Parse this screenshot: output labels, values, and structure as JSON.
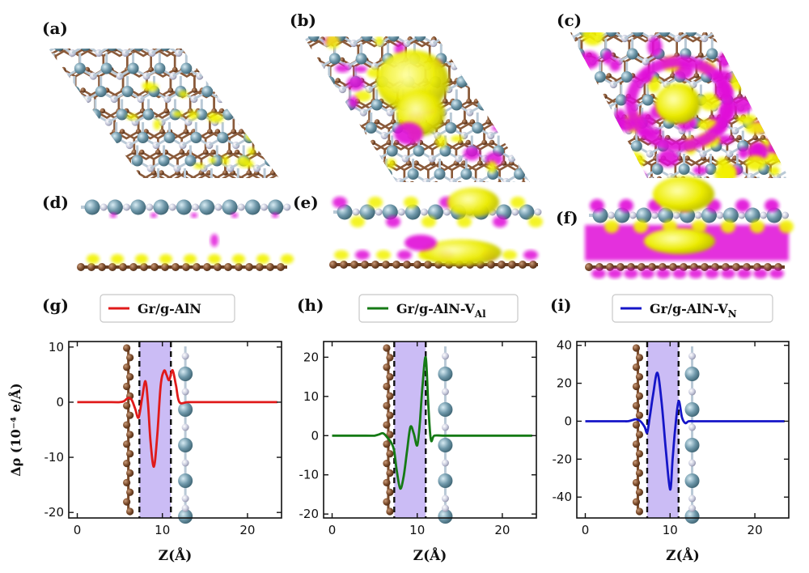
{
  "panels_top": [
    {
      "letter": "(a)"
    },
    {
      "letter": "(b)"
    },
    {
      "letter": "(c)"
    },
    {
      "letter": "(d)"
    },
    {
      "letter": "(e)"
    },
    {
      "letter": "(f)"
    }
  ],
  "colors": {
    "carbon": "#7a4a2a",
    "aluminum": "#6f98aa",
    "nitrogen": "#c7c9dc",
    "accumulation": "#f2f200",
    "depletion": "#e010d8",
    "shade": "#b9a6f2"
  },
  "chart_data": [
    {
      "type": "line",
      "letter": "(g)",
      "legend": "Gr/g-AlN",
      "legend_sub": "",
      "color": "#e01a1a",
      "xlabel": "Z(Å)",
      "ylabel": "Δρ (10⁻⁴ e/Å)",
      "xlim": [
        -1,
        24
      ],
      "ylim": [
        -21,
        11
      ],
      "xticks": [
        0,
        10,
        20
      ],
      "yticks": [
        10,
        0,
        -10,
        -20
      ],
      "shade": [
        7.3,
        11.0
      ],
      "gr_z": 6.0,
      "aln_z": 12.7,
      "x": [
        0,
        4,
        5,
        5.5,
        6,
        6.4,
        6.8,
        7.2,
        7.6,
        8.0,
        8.3,
        8.6,
        9.0,
        9.4,
        9.8,
        10.2,
        10.5,
        10.8,
        11.2,
        11.6,
        12,
        13,
        15,
        20,
        23.5
      ],
      "y": [
        0,
        0,
        0,
        0.2,
        0.8,
        0.4,
        -1.2,
        -2.8,
        0.6,
        3.8,
        0,
        -7.0,
        -11.7,
        -6.0,
        3.0,
        5.7,
        4.9,
        4.0,
        5.8,
        3.0,
        0,
        0,
        0,
        0,
        0
      ]
    },
    {
      "type": "line",
      "letter": "(h)",
      "legend": "Gr/g-AlN-V",
      "legend_sub": "Al",
      "color": "#157a15",
      "xlabel": "Z(Å)",
      "ylabel": "",
      "xlim": [
        -1,
        24
      ],
      "ylim": [
        -21,
        24
      ],
      "xticks": [
        0,
        10,
        20
      ],
      "yticks": [
        20,
        10,
        0,
        -10,
        -20
      ],
      "shade": [
        7.3,
        11.0
      ],
      "gr_z": 6.6,
      "aln_z": 13.3,
      "x": [
        0,
        4,
        5,
        5.5,
        6,
        6.5,
        7,
        7.3,
        7.6,
        8.0,
        8.4,
        8.8,
        9.2,
        9.6,
        10.0,
        10.3,
        10.6,
        11.0,
        11.3,
        11.6,
        12,
        13,
        15,
        20,
        23.5
      ],
      "y": [
        0,
        0,
        0,
        0.3,
        0.6,
        -0.5,
        -2.0,
        -4.0,
        -9.0,
        -13.5,
        -10.5,
        -4.0,
        2.2,
        0.5,
        -2.5,
        3.0,
        12.0,
        20.0,
        8.0,
        -1.0,
        0,
        0,
        0,
        0,
        0
      ]
    },
    {
      "type": "line",
      "letter": "(i)",
      "legend": "Gr/g-AlN-V",
      "legend_sub": "N",
      "color": "#1515c8",
      "xlabel": "Z(Å)",
      "ylabel": "",
      "xlim": [
        -1,
        24
      ],
      "ylim": [
        -51,
        42
      ],
      "xticks": [
        0,
        10,
        20
      ],
      "yticks": [
        40,
        20,
        0,
        -20,
        -40
      ],
      "shade": [
        7.3,
        11.0
      ],
      "gr_z": 6.2,
      "aln_z": 12.6,
      "x": [
        0,
        4,
        5,
        5.5,
        6,
        6.5,
        7,
        7.3,
        7.6,
        8.0,
        8.5,
        9.0,
        9.5,
        10.0,
        10.3,
        10.6,
        11.0,
        11.4,
        11.8,
        12.2,
        13,
        15,
        20,
        23.5
      ],
      "y": [
        0,
        0,
        0,
        0.5,
        1.0,
        0,
        -3.0,
        -6.0,
        2.0,
        14.0,
        25.5,
        10.0,
        -15.0,
        -36.0,
        -20.0,
        -4.0,
        10.5,
        2.0,
        -1.0,
        0,
        0,
        0,
        0,
        0
      ]
    }
  ]
}
